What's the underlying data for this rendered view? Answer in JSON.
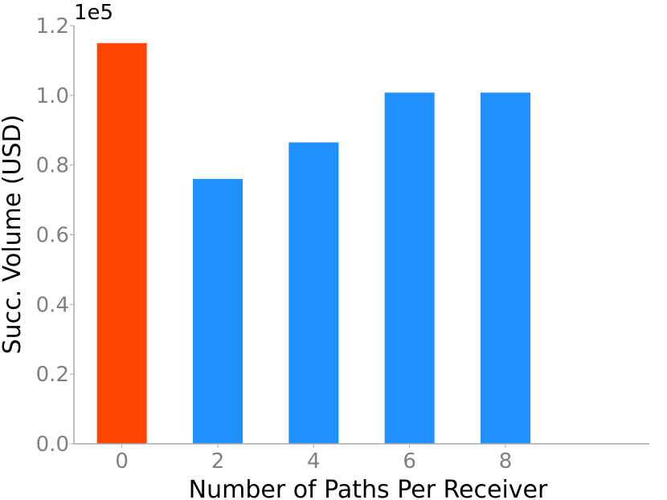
{
  "chart_data": {
    "type": "bar",
    "title": "",
    "xlabel": "Number of Paths Per Receiver",
    "ylabel": "Succ. Volume (USD)",
    "y_offset_text": "1e5",
    "categories": [
      "0",
      "2",
      "4",
      "6",
      "8"
    ],
    "values": [
      115000,
      76000,
      86500,
      100800,
      100800
    ],
    "bar_colors": [
      "#ff4500",
      "#1e90ff",
      "#1e90ff",
      "#1e90ff",
      "#1e90ff"
    ],
    "ylim": [
      0,
      120000
    ],
    "xlim": [
      -1,
      11
    ],
    "y_ticks": [
      0,
      20000,
      40000,
      60000,
      80000,
      100000,
      120000
    ],
    "y_tick_labels": [
      "0.0",
      "0.2",
      "0.4",
      "0.6",
      "0.8",
      "1.0",
      "1.2"
    ],
    "grid": false,
    "legend": "none"
  }
}
